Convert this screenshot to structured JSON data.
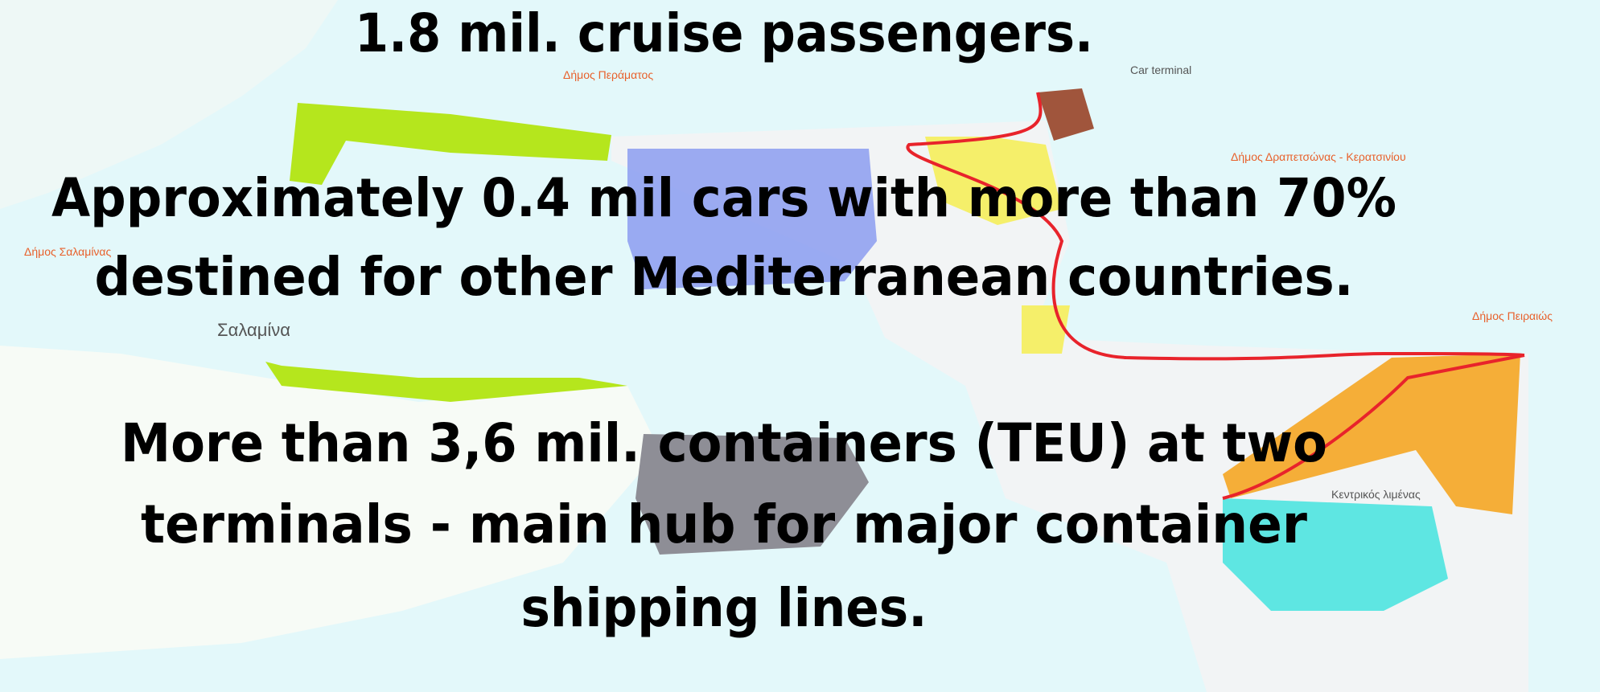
{
  "slide": {
    "statements": [
      {
        "lines": [
          "1.8 mil. cruise passengers."
        ]
      },
      {
        "lines": [
          "Approximately 0.4 mil cars with more than 70%",
          "destined for other Mediterranean countries."
        ]
      },
      {
        "lines": [
          "More than 3,6 mil. containers (TEU) at two",
          "terminals  - main hub for major container",
          "shipping lines."
        ]
      }
    ],
    "map_labels": {
      "salamina": "Σαλαμίνα",
      "perama": "Δήμος Περάματος",
      "salamina_municipality": "Δήμος Σαλαμίνας",
      "drapetsona": "Δήμος Δραπετσώνας - Κερατσινίου",
      "piraeus": "Δήμος Πειραιώς",
      "car_terminal": "Car terminal",
      "central_port": "Κεντρικός λιμένας"
    }
  }
}
